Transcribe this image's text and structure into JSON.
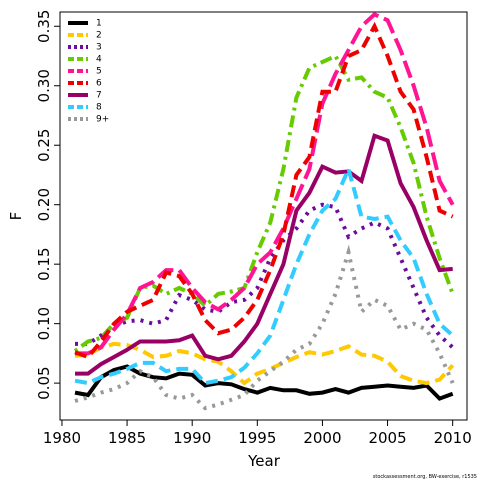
{
  "chart_data": {
    "type": "line",
    "x_label": "Year",
    "y_label": "F",
    "footnote": "stockassessment.org, BW-exercise, r1535",
    "x": [
      1981,
      1982,
      1983,
      1984,
      1985,
      1986,
      1987,
      1988,
      1989,
      1990,
      1991,
      1992,
      1993,
      1994,
      1995,
      1996,
      1997,
      1998,
      1999,
      2000,
      2001,
      2002,
      2003,
      2004,
      2005,
      2006,
      2007,
      2008,
      2009,
      2010
    ],
    "xlim": [
      1979.85,
      2011.1
    ],
    "xticks": [
      1980,
      1985,
      1990,
      1995,
      2000,
      2005,
      2010
    ],
    "ylim": [
      0.019,
      0.362
    ],
    "yticks": [
      0.05,
      {
        "value": 0.1,
        "label": "0.10"
      },
      0.15,
      {
        "value": 0.2,
        "label": "0.20"
      },
      0.25,
      {
        "value": 0.3,
        "label": "0.30"
      },
      0.35
    ],
    "legend_position": "top-left",
    "series": [
      {
        "name": "1",
        "color": "#000000",
        "style": "solid",
        "values": [
          0.042,
          0.04,
          0.055,
          0.061,
          0.064,
          0.058,
          0.055,
          0.054,
          0.058,
          0.057,
          0.048,
          0.05,
          0.049,
          0.045,
          0.042,
          0.046,
          0.044,
          0.044,
          0.041,
          0.042,
          0.045,
          0.042,
          0.046,
          0.047,
          0.048,
          0.047,
          0.046,
          0.048,
          0.037,
          0.041
        ]
      },
      {
        "name": "2",
        "color": "#ffc800",
        "style": "dashed",
        "values": [
          0.073,
          0.074,
          0.08,
          0.083,
          0.082,
          0.078,
          0.072,
          0.073,
          0.077,
          0.075,
          0.07,
          0.068,
          0.06,
          0.05,
          0.058,
          0.062,
          0.067,
          0.072,
          0.076,
          0.074,
          0.077,
          0.081,
          0.074,
          0.073,
          0.068,
          0.056,
          0.052,
          0.05,
          0.053,
          0.065
        ]
      },
      {
        "name": "3",
        "color": "#6a0d9e",
        "style": "dotted",
        "values": [
          0.083,
          0.083,
          0.09,
          0.098,
          0.102,
          0.103,
          0.1,
          0.103,
          0.124,
          0.12,
          0.112,
          0.11,
          0.118,
          0.12,
          0.13,
          0.155,
          0.17,
          0.18,
          0.195,
          0.2,
          0.198,
          0.173,
          0.18,
          0.185,
          0.18,
          0.155,
          0.13,
          0.105,
          0.09,
          0.08
        ]
      },
      {
        "name": "4",
        "color": "#66cc00",
        "style": "dashdot",
        "values": [
          0.077,
          0.085,
          0.088,
          0.1,
          0.105,
          0.13,
          0.132,
          0.125,
          0.13,
          0.125,
          0.115,
          0.125,
          0.127,
          0.13,
          0.16,
          0.185,
          0.23,
          0.29,
          0.315,
          0.32,
          0.325,
          0.305,
          0.307,
          0.295,
          0.29,
          0.265,
          0.235,
          0.19,
          0.155,
          0.125
        ]
      },
      {
        "name": "5",
        "color": "#ff1493",
        "style": "longdash",
        "values": [
          0.075,
          0.075,
          0.08,
          0.095,
          0.108,
          0.13,
          0.135,
          0.145,
          0.145,
          0.13,
          0.118,
          0.112,
          0.12,
          0.13,
          0.15,
          0.16,
          0.18,
          0.205,
          0.23,
          0.285,
          0.31,
          0.33,
          0.35,
          0.36,
          0.355,
          0.33,
          0.3,
          0.265,
          0.22,
          0.2
        ]
      },
      {
        "name": "6",
        "color": "#ee0000",
        "style": "dashed",
        "values": [
          0.076,
          0.072,
          0.085,
          0.1,
          0.11,
          0.115,
          0.12,
          0.143,
          0.14,
          0.125,
          0.103,
          0.092,
          0.095,
          0.105,
          0.12,
          0.145,
          0.175,
          0.225,
          0.24,
          0.295,
          0.295,
          0.325,
          0.33,
          0.35,
          0.325,
          0.295,
          0.28,
          0.24,
          0.195,
          0.19
        ]
      },
      {
        "name": "7",
        "color": "#990066",
        "style": "solid",
        "values": [
          0.058,
          0.058,
          0.066,
          0.072,
          0.078,
          0.085,
          0.085,
          0.085,
          0.086,
          0.09,
          0.073,
          0.07,
          0.073,
          0.085,
          0.1,
          0.125,
          0.15,
          0.195,
          0.21,
          0.232,
          0.227,
          0.228,
          0.22,
          0.258,
          0.254,
          0.218,
          0.198,
          0.17,
          0.145,
          0.146
        ]
      },
      {
        "name": "8",
        "color": "#33ccff",
        "style": "dashed",
        "values": [
          0.052,
          0.05,
          0.055,
          0.058,
          0.062,
          0.067,
          0.067,
          0.06,
          0.062,
          0.062,
          0.05,
          0.052,
          0.055,
          0.063,
          0.075,
          0.09,
          0.12,
          0.15,
          0.175,
          0.195,
          0.205,
          0.23,
          0.19,
          0.188,
          0.19,
          0.17,
          0.155,
          0.125,
          0.1,
          0.09
        ]
      },
      {
        "name": "9+",
        "color": "#999999",
        "style": "dotted",
        "values": [
          0.035,
          0.038,
          0.042,
          0.045,
          0.05,
          0.06,
          0.055,
          0.04,
          0.037,
          0.04,
          0.029,
          0.032,
          0.036,
          0.04,
          0.052,
          0.06,
          0.068,
          0.078,
          0.083,
          0.1,
          0.125,
          0.16,
          0.11,
          0.12,
          0.115,
          0.095,
          0.1,
          0.095,
          0.075,
          0.05
        ]
      }
    ]
  }
}
